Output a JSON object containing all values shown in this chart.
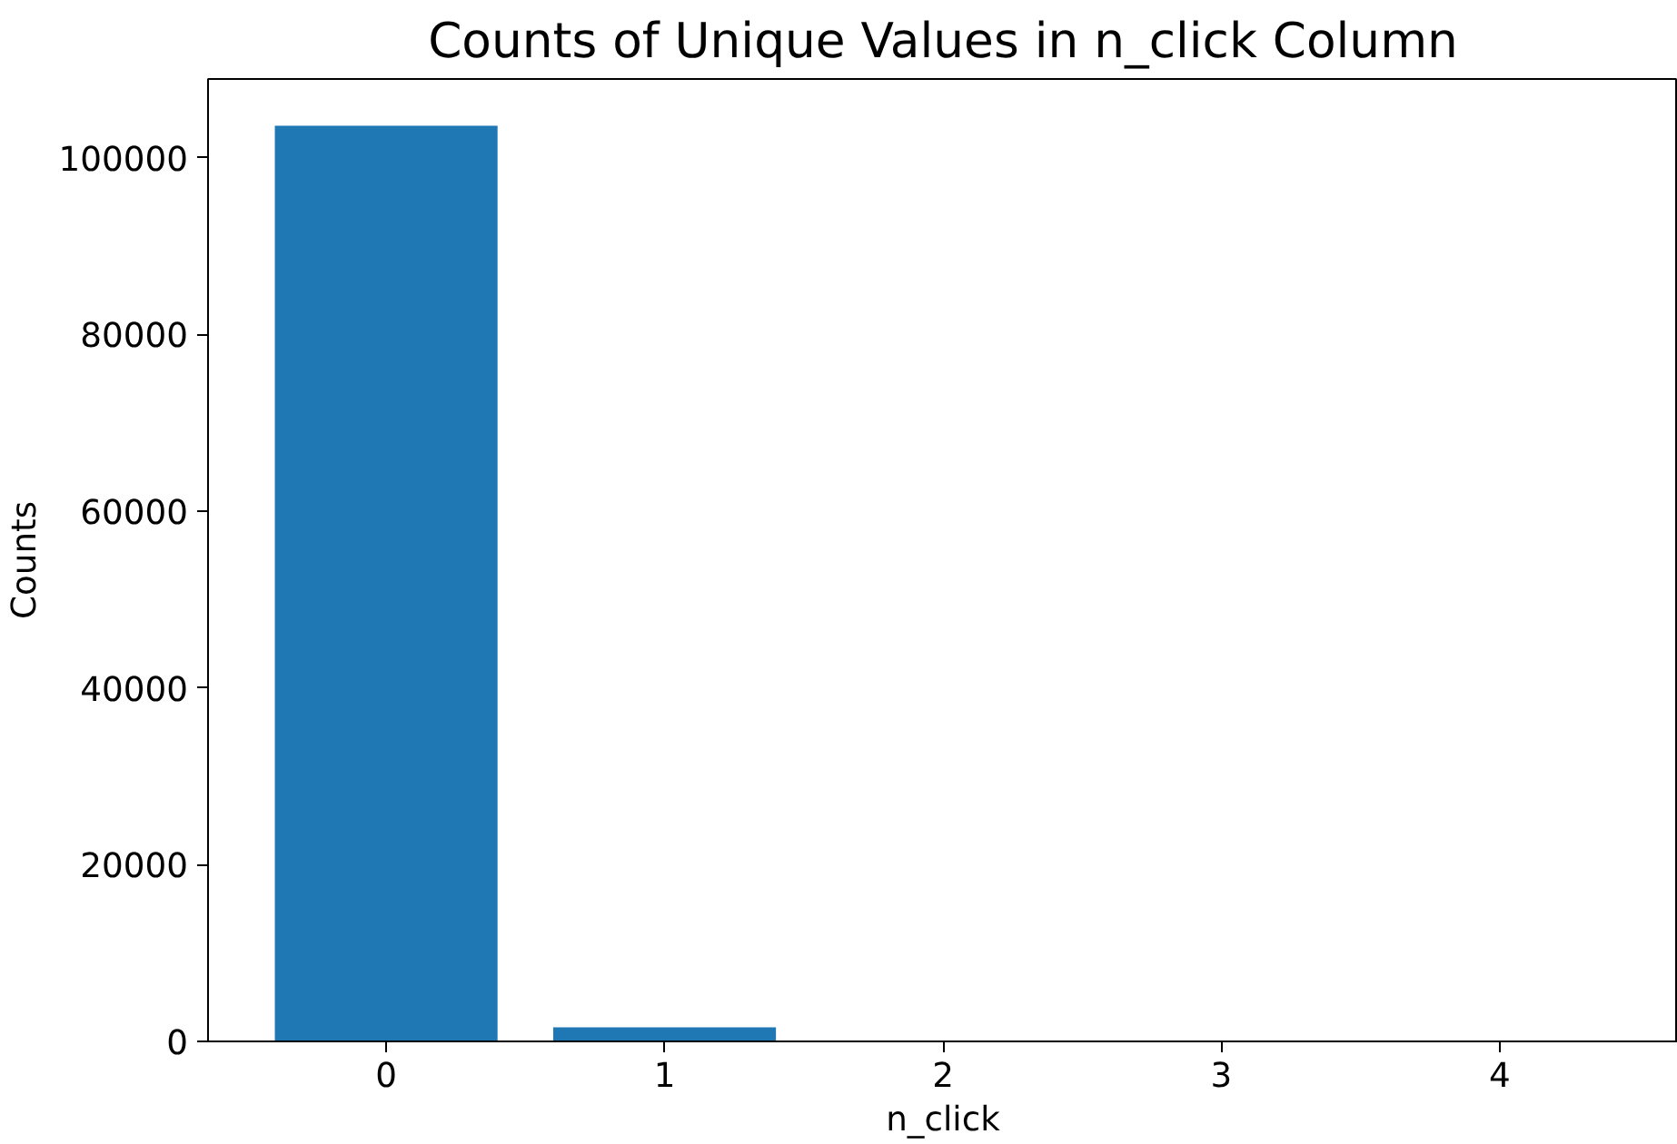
{
  "chart_data": {
    "type": "bar",
    "title": "Counts of Unique Values in n_click Column",
    "xlabel": "n_click",
    "ylabel": "Counts",
    "x": [
      0,
      1,
      2,
      3,
      4
    ],
    "values": [
      103600,
      1600,
      0,
      0,
      0
    ],
    "color": "#1f77b4",
    "xlim": [
      -0.64,
      4.64
    ],
    "xticks": [
      0,
      1,
      2,
      3,
      4
    ],
    "ylim": [
      0,
      108900
    ],
    "yticks": [
      0,
      20000,
      40000,
      60000,
      80000,
      100000
    ],
    "grid": false
  }
}
